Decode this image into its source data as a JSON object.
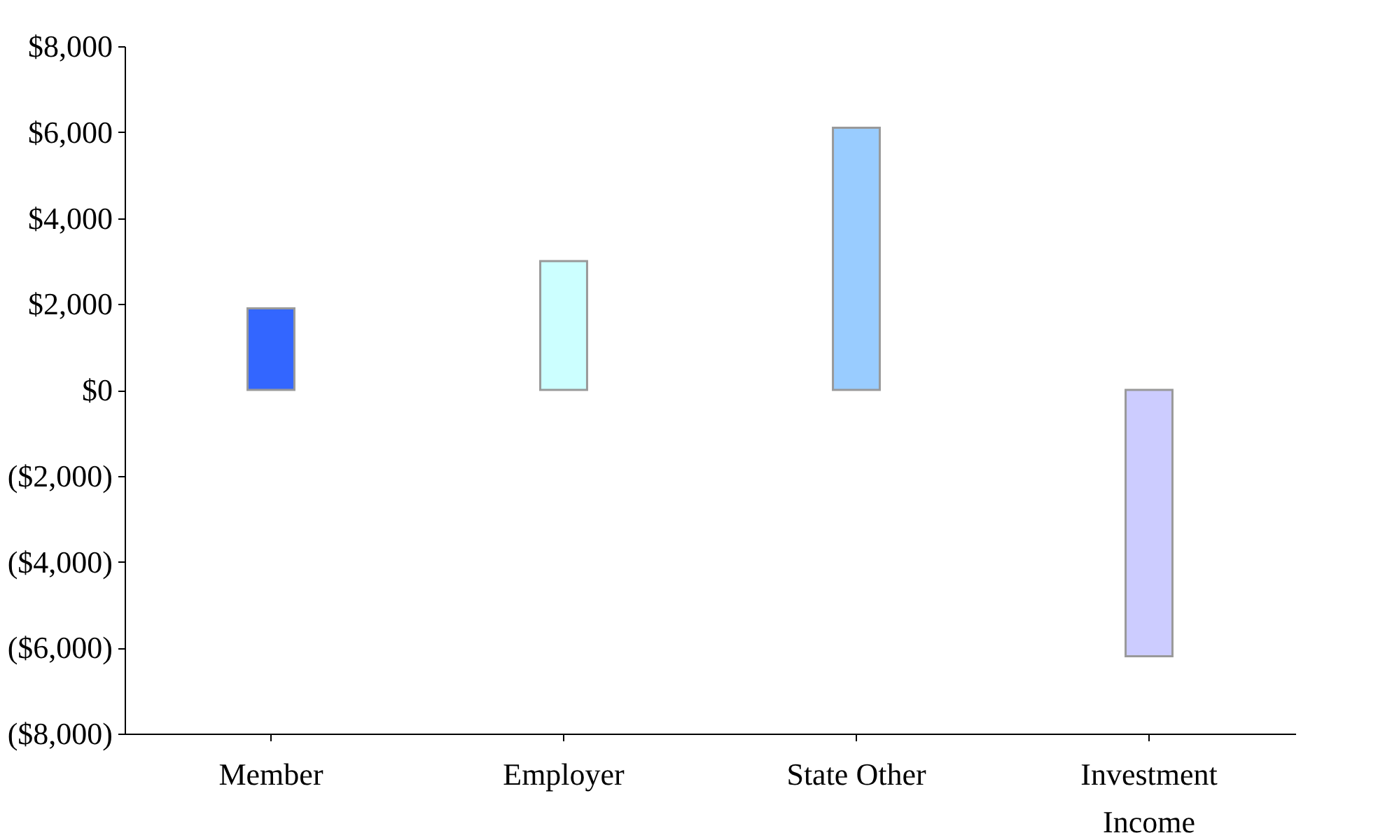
{
  "chart_data": {
    "type": "bar",
    "categories": [
      "Member",
      "Employer",
      "State Other",
      "Investment Income"
    ],
    "values": [
      1900,
      3000,
      6100,
      -6200
    ],
    "colors": [
      "#3366ff",
      "#ccffff",
      "#99ccff",
      "#ccccff"
    ],
    "ylim": [
      -8000,
      8000
    ],
    "yticks": [
      {
        "value": -8000,
        "label": "($8,000)"
      },
      {
        "value": -6000,
        "label": "($6,000)"
      },
      {
        "value": -4000,
        "label": "($4,000)"
      },
      {
        "value": -2000,
        "label": "($2,000)"
      },
      {
        "value": 0,
        "label": "$0"
      },
      {
        "value": 2000,
        "label": "$2,000"
      },
      {
        "value": 4000,
        "label": "$4,000"
      },
      {
        "value": 6000,
        "label": "$6,000"
      },
      {
        "value": 8000,
        "label": "$8,000"
      }
    ],
    "grid": false
  }
}
